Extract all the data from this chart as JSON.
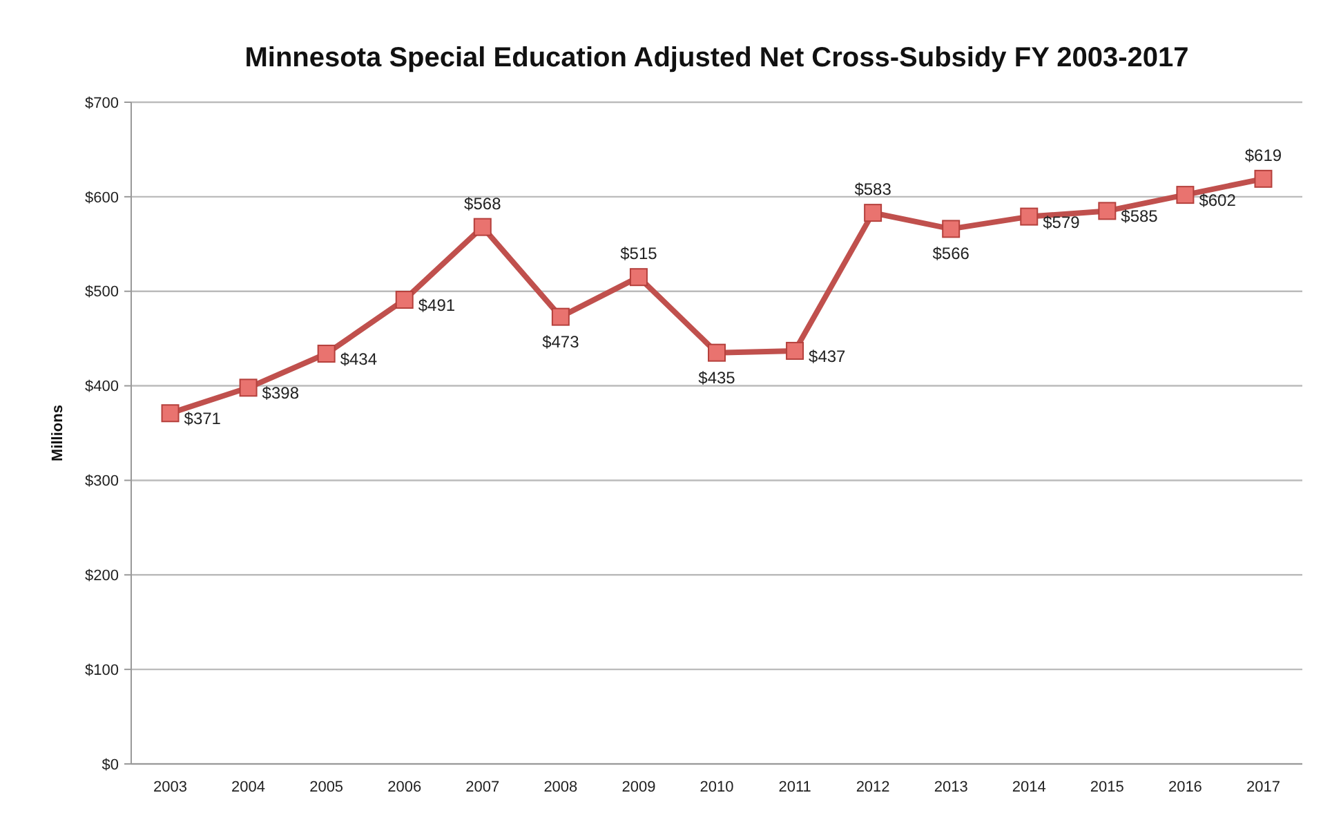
{
  "chart_data": {
    "type": "line",
    "title": "Minnesota Special Education Adjusted Net Cross-Subsidy FY 2003-2017",
    "ylabel": "Millions",
    "categories": [
      "2003",
      "2004",
      "2005",
      "2006",
      "2007",
      "2008",
      "2009",
      "2010",
      "2011",
      "2012",
      "2013",
      "2014",
      "2015",
      "2016",
      "2017"
    ],
    "series": [
      {
        "color": "#c0504d",
        "values": [
          371,
          398,
          434,
          491,
          568,
          473,
          515,
          435,
          437,
          583,
          566,
          579,
          585,
          602,
          619
        ],
        "value_labels": [
          "$371",
          "$398",
          "$434",
          "$491",
          "$568",
          "$473",
          "$515",
          "$435",
          "$437",
          "$583",
          "$566",
          "$579",
          "$585",
          "$602",
          "$619"
        ]
      }
    ],
    "ylim": [
      0,
      700
    ],
    "yticks": [
      {
        "value": 0,
        "label": "$0"
      },
      {
        "value": 100,
        "label": "$100"
      },
      {
        "value": 200,
        "label": "$200"
      },
      {
        "value": 300,
        "label": "$300"
      },
      {
        "value": 400,
        "label": "$400"
      },
      {
        "value": 500,
        "label": "$500"
      },
      {
        "value": 600,
        "label": "$600"
      },
      {
        "value": 700,
        "label": "$700"
      }
    ],
    "grid": "y",
    "marker": "square",
    "line_style": "solid"
  }
}
